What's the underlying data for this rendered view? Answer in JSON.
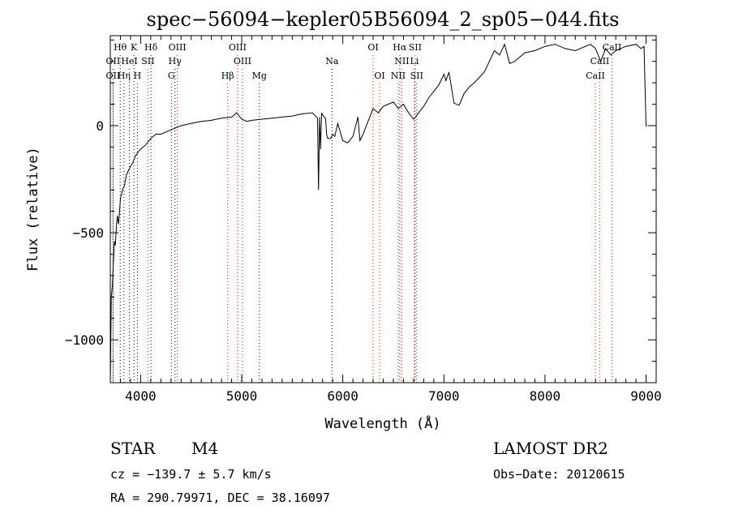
{
  "chart_data": {
    "type": "line",
    "title": "spec−56094−kepler05B56094_2_sp05−044.fits",
    "xlabel": "Wavelength (Å)",
    "ylabel": "Flux (relative)",
    "xlim": [
      3700,
      9100
    ],
    "ylim": [
      -1200,
      420
    ],
    "xticks": [
      4000,
      5000,
      6000,
      7000,
      8000,
      9000
    ],
    "xtick_labels": [
      "4000",
      "5000",
      "6000",
      "7000",
      "8000",
      "9000"
    ],
    "yticks": [
      -1000,
      -500,
      0
    ],
    "ytick_labels": [
      "−1000",
      "−500",
      "0"
    ],
    "grid": false,
    "series": [
      {
        "x": [
          3700,
          3710,
          3720,
          3730,
          3740,
          3750,
          3760,
          3770,
          3780,
          3790,
          3800,
          3820,
          3840,
          3860,
          3880,
          3900,
          3920,
          3950,
          3980,
          4000,
          4050,
          4100,
          4150,
          4200,
          4300,
          4400,
          4500,
          4600,
          4700,
          4800,
          4900,
          4950,
          5000,
          5050,
          5100,
          5200,
          5300,
          5400,
          5500,
          5600,
          5700,
          5750,
          5760,
          5770,
          5780,
          5790,
          5800,
          5820,
          5830,
          5840,
          5850,
          5880,
          5900,
          5920,
          5950,
          6000,
          6050,
          6100,
          6150,
          6170,
          6200,
          6250,
          6300,
          6350,
          6400,
          6450,
          6500,
          6550,
          6600,
          6650,
          6700,
          6720,
          6750,
          6800,
          6850,
          6900,
          6950,
          7000,
          7020,
          7050,
          7100,
          7150,
          7200,
          7250,
          7300,
          7400,
          7500,
          7550,
          7600,
          7650,
          7700,
          7800,
          7900,
          8000,
          8100,
          8200,
          8300,
          8400,
          8450,
          8500,
          8550,
          8600,
          8650,
          8700,
          8800,
          8900,
          8950,
          8980,
          9000,
          9010
        ],
        "y": [
          -1200,
          -800,
          -750,
          -650,
          -540,
          -560,
          -470,
          -420,
          -460,
          -410,
          -340,
          -300,
          -280,
          -230,
          -210,
          -190,
          -175,
          -140,
          -120,
          -110,
          -90,
          -60,
          -40,
          -40,
          -20,
          0,
          10,
          20,
          25,
          35,
          40,
          60,
          30,
          20,
          25,
          30,
          35,
          40,
          45,
          55,
          60,
          35,
          -300,
          40,
          -110,
          60,
          50,
          40,
          30,
          -40,
          -60,
          -60,
          -40,
          -50,
          10,
          -70,
          -80,
          -50,
          40,
          -70,
          -40,
          20,
          80,
          60,
          90,
          100,
          110,
          80,
          100,
          60,
          30,
          40,
          60,
          90,
          130,
          160,
          190,
          240,
          210,
          250,
          105,
          95,
          150,
          180,
          200,
          250,
          350,
          330,
          380,
          290,
          300,
          340,
          350,
          370,
          380,
          360,
          350,
          370,
          380,
          360,
          300,
          360,
          330,
          350,
          370,
          380,
          360,
          370,
          0,
          0
        ]
      }
    ],
    "line_markers": [
      {
        "label": "Hθ",
        "x": 3798,
        "row": 0
      },
      {
        "label": "K",
        "x": 3934,
        "row": 0
      },
      {
        "label": "Hδ",
        "x": 4102,
        "row": 0
      },
      {
        "label": "OIII",
        "x": 4363,
        "row": 0
      },
      {
        "label": "OIII",
        "x": 4959,
        "row": 0
      },
      {
        "label": "OI",
        "x": 6300,
        "row": 0
      },
      {
        "label": "Hα",
        "x": 6563,
        "row": 0
      },
      {
        "label": "SII",
        "x": 6716,
        "row": 0
      },
      {
        "label": "CaII",
        "x": 8662,
        "row": 0
      },
      {
        "label": "OII",
        "x": 3727,
        "row": 1
      },
      {
        "label": "HeI",
        "x": 3889,
        "row": 1
      },
      {
        "label": "SII",
        "x": 4072,
        "row": 1
      },
      {
        "label": "Hγ",
        "x": 4340,
        "row": 1
      },
      {
        "label": "OIII",
        "x": 5007,
        "row": 1
      },
      {
        "label": "Na",
        "x": 5893,
        "row": 1
      },
      {
        "label": "NII",
        "x": 6584,
        "row": 1
      },
      {
        "label": "Li",
        "x": 6708,
        "row": 1
      },
      {
        "label": "CaII",
        "x": 8542,
        "row": 1
      },
      {
        "label": "OII",
        "x": 3727,
        "row": 2
      },
      {
        "label": "Hη",
        "x": 3835,
        "row": 2
      },
      {
        "label": "H",
        "x": 3968,
        "row": 2
      },
      {
        "label": "G",
        "x": 4304,
        "row": 2
      },
      {
        "label": "Hβ",
        "x": 4861,
        "row": 2
      },
      {
        "label": "Mg",
        "x": 5175,
        "row": 2
      },
      {
        "label": "OI",
        "x": 6364,
        "row": 2
      },
      {
        "label": "NII",
        "x": 6548,
        "row": 2
      },
      {
        "label": "SII",
        "x": 6731,
        "row": 2
      },
      {
        "label": "CaII",
        "x": 8498,
        "row": 2
      }
    ],
    "marker_colors": {
      "emission": "#ff0000",
      "absorption": "#000000"
    }
  },
  "info": {
    "object_class": "STAR",
    "subclass": "M4",
    "survey": "LAMOST DR2",
    "cz": "cz = −139.7 ± 5.7 km/s",
    "obs_date": "Obs−Date: 20120615",
    "coords": "RA = 290.79971, DEC =  38.16097"
  }
}
